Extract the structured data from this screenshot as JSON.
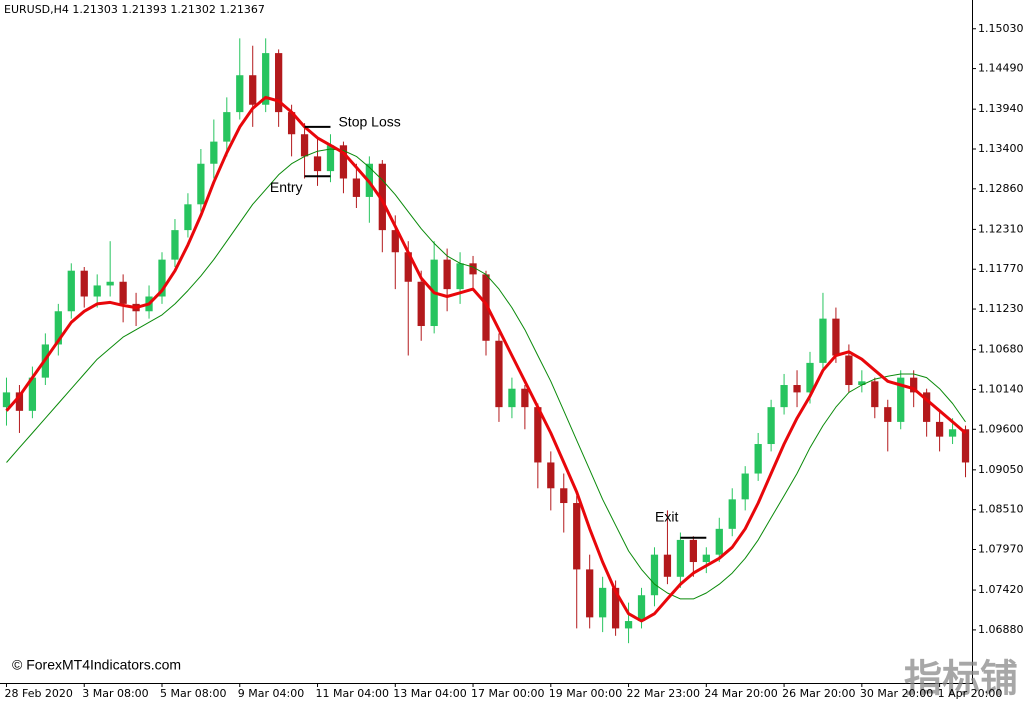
{
  "chart_data": {
    "type": "candlestick",
    "title": "EURUSD,H4  1.21303 1.21393 1.21302 1.21367",
    "copyright": "© ForexMT4Indicators.com",
    "watermark": "指标铺",
    "up_color": "#27c45f",
    "down_color": "#b3191c",
    "ylim": [
      1.0616,
      1.1542
    ],
    "xlim": [
      -0.5,
      74.5
    ],
    "yticks": [
      {
        "value": 1.1503,
        "label": "1.15030"
      },
      {
        "value": 1.1449,
        "label": "1.14490"
      },
      {
        "value": 1.1394,
        "label": "1.13940"
      },
      {
        "value": 1.134,
        "label": "1.13400"
      },
      {
        "value": 1.1286,
        "label": "1.12860"
      },
      {
        "value": 1.1231,
        "label": "1.12310"
      },
      {
        "value": 1.1177,
        "label": "1.11770"
      },
      {
        "value": 1.1123,
        "label": "1.11230"
      },
      {
        "value": 1.1068,
        "label": "1.10680"
      },
      {
        "value": 1.1014,
        "label": "1.10140"
      },
      {
        "value": 1.096,
        "label": "1.09600"
      },
      {
        "value": 1.0905,
        "label": "1.09050"
      },
      {
        "value": 1.0851,
        "label": "1.08510"
      },
      {
        "value": 1.0797,
        "label": "1.07970"
      },
      {
        "value": 1.0742,
        "label": "1.07420"
      },
      {
        "value": 1.0688,
        "label": "1.06880"
      }
    ],
    "xticks": [
      {
        "value": 0,
        "label": "28 Feb 2020"
      },
      {
        "value": 6,
        "label": "3 Mar 08:00"
      },
      {
        "value": 12,
        "label": "5 Mar 08:00"
      },
      {
        "value": 18,
        "label": "9 Mar 04:00"
      },
      {
        "value": 24,
        "label": "11 Mar 04:00"
      },
      {
        "value": 30,
        "label": "13 Mar 04:00"
      },
      {
        "value": 36,
        "label": "17 Mar 00:00"
      },
      {
        "value": 42,
        "label": "19 Mar 00:00"
      },
      {
        "value": 48,
        "label": "22 Mar 23:00"
      },
      {
        "value": 54,
        "label": "24 Mar 20:00"
      },
      {
        "value": 60,
        "label": "26 Mar 20:00"
      },
      {
        "value": 66,
        "label": "30 Mar 20:00"
      },
      {
        "value": 72,
        "label": "1 Apr 20:00"
      }
    ],
    "candles": [
      [
        1.099,
        1.103,
        1.0965,
        1.101
      ],
      [
        1.101,
        1.102,
        1.0955,
        1.0985
      ],
      [
        1.0985,
        1.1045,
        1.0975,
        1.103
      ],
      [
        1.103,
        1.109,
        1.102,
        1.1075
      ],
      [
        1.1075,
        1.113,
        1.106,
        1.112
      ],
      [
        1.112,
        1.1185,
        1.111,
        1.1175
      ],
      [
        1.1175,
        1.118,
        1.1125,
        1.114
      ],
      [
        1.114,
        1.117,
        1.1125,
        1.1155
      ],
      [
        1.1155,
        1.1215,
        1.114,
        1.116
      ],
      [
        1.116,
        1.117,
        1.1105,
        1.113
      ],
      [
        1.113,
        1.1145,
        1.11,
        1.112
      ],
      [
        1.112,
        1.1155,
        1.111,
        1.114
      ],
      [
        1.114,
        1.12,
        1.113,
        1.119
      ],
      [
        1.119,
        1.1245,
        1.118,
        1.123
      ],
      [
        1.123,
        1.128,
        1.122,
        1.1265
      ],
      [
        1.1265,
        1.134,
        1.1255,
        1.132
      ],
      [
        1.132,
        1.138,
        1.13,
        1.135
      ],
      [
        1.135,
        1.141,
        1.133,
        1.139
      ],
      [
        1.139,
        1.149,
        1.138,
        1.144
      ],
      [
        1.144,
        1.148,
        1.137,
        1.14
      ],
      [
        1.14,
        1.149,
        1.139,
        1.147
      ],
      [
        1.147,
        1.1475,
        1.137,
        1.139
      ],
      [
        1.139,
        1.14,
        1.133,
        1.136
      ],
      [
        1.136,
        1.1375,
        1.13,
        1.133
      ],
      [
        1.133,
        1.1355,
        1.129,
        1.131
      ],
      [
        1.131,
        1.136,
        1.1295,
        1.1345
      ],
      [
        1.1345,
        1.135,
        1.128,
        1.13
      ],
      [
        1.13,
        1.132,
        1.126,
        1.1275
      ],
      [
        1.1275,
        1.133,
        1.124,
        1.132
      ],
      [
        1.132,
        1.1325,
        1.12,
        1.123
      ],
      [
        1.123,
        1.125,
        1.115,
        1.12
      ],
      [
        1.12,
        1.1215,
        1.106,
        1.116
      ],
      [
        1.116,
        1.1175,
        1.108,
        1.11
      ],
      [
        1.11,
        1.1215,
        1.109,
        1.119
      ],
      [
        1.119,
        1.1205,
        1.112,
        1.115
      ],
      [
        1.115,
        1.12,
        1.113,
        1.1185
      ],
      [
        1.1185,
        1.1195,
        1.115,
        1.117
      ],
      [
        1.117,
        1.1175,
        1.106,
        1.108
      ],
      [
        1.108,
        1.109,
        1.097,
        1.099
      ],
      [
        1.099,
        1.103,
        1.0975,
        1.1015
      ],
      [
        1.1015,
        1.102,
        1.096,
        1.099
      ],
      [
        1.099,
        1.0995,
        1.088,
        1.0915
      ],
      [
        1.0915,
        1.093,
        1.085,
        1.088
      ],
      [
        1.088,
        1.09,
        1.082,
        1.086
      ],
      [
        1.086,
        1.087,
        1.069,
        1.077
      ],
      [
        1.077,
        1.079,
        1.069,
        1.0705
      ],
      [
        1.0705,
        1.076,
        1.0685,
        1.0745
      ],
      [
        1.0745,
        1.0755,
        1.068,
        1.069
      ],
      [
        1.069,
        1.0725,
        1.067,
        1.07
      ],
      [
        1.07,
        1.0745,
        1.069,
        1.0735
      ],
      [
        1.0735,
        1.08,
        1.072,
        1.079
      ],
      [
        1.079,
        1.085,
        1.075,
        1.076
      ],
      [
        1.076,
        1.082,
        1.0745,
        1.081
      ],
      [
        1.081,
        1.0815,
        1.076,
        1.078
      ],
      [
        1.078,
        1.08,
        1.0765,
        1.079
      ],
      [
        1.079,
        1.084,
        1.078,
        1.0825
      ],
      [
        1.0825,
        1.088,
        1.0815,
        1.0865
      ],
      [
        1.0865,
        1.091,
        1.085,
        1.09
      ],
      [
        1.09,
        1.0955,
        1.089,
        1.094
      ],
      [
        1.094,
        1.1,
        1.093,
        1.099
      ],
      [
        1.099,
        1.1035,
        1.098,
        1.102
      ],
      [
        1.102,
        1.104,
        1.099,
        1.101
      ],
      [
        1.101,
        1.1065,
        1.0995,
        1.105
      ],
      [
        1.105,
        1.1145,
        1.104,
        1.111
      ],
      [
        1.111,
        1.1125,
        1.105,
        1.106
      ],
      [
        1.106,
        1.1075,
        1.101,
        1.102
      ],
      [
        1.102,
        1.104,
        1.101,
        1.1025
      ],
      [
        1.1025,
        1.103,
        1.0975,
        1.099
      ],
      [
        1.099,
        1.1,
        1.093,
        1.097
      ],
      [
        1.097,
        1.104,
        1.096,
        1.103
      ],
      [
        1.103,
        1.104,
        1.099,
        1.101
      ],
      [
        1.101,
        1.1015,
        1.095,
        1.097
      ],
      [
        1.097,
        1.0985,
        1.093,
        1.095
      ],
      [
        1.095,
        1.0975,
        1.094,
        1.096
      ],
      [
        1.096,
        1.0965,
        1.0895,
        1.0915
      ]
    ],
    "lines": [
      {
        "color": "#0a8a0a",
        "width": 1,
        "values": [
          1.0915,
          1.0935,
          1.0955,
          1.0975,
          1.0995,
          1.1015,
          1.1035,
          1.1055,
          1.107,
          1.1085,
          1.1095,
          1.1105,
          1.1115,
          1.113,
          1.1148,
          1.1168,
          1.119,
          1.1215,
          1.124,
          1.1265,
          1.1285,
          1.1305,
          1.132,
          1.133,
          1.1337,
          1.134,
          1.1338,
          1.133,
          1.1315,
          1.1298,
          1.1278,
          1.1255,
          1.1232,
          1.1212,
          1.1195,
          1.1185,
          1.118,
          1.117,
          1.115,
          1.1125,
          1.1095,
          1.106,
          1.1025,
          1.0985,
          1.0945,
          1.0905,
          1.0865,
          1.083,
          1.0795,
          1.077,
          1.075,
          1.0738,
          1.073,
          1.073,
          1.0738,
          1.075,
          1.0765,
          1.0785,
          1.081,
          1.084,
          1.087,
          1.09,
          1.0935,
          1.0965,
          1.099,
          1.101,
          1.102,
          1.1028,
          1.1032,
          1.1035,
          1.1035,
          1.103,
          1.1015,
          1.0995,
          1.097
        ]
      },
      {
        "color": "#e8070b",
        "width": 3,
        "values": [
          1.0985,
          1.1005,
          1.103,
          1.1055,
          1.108,
          1.1105,
          1.112,
          1.113,
          1.1132,
          1.1128,
          1.1125,
          1.113,
          1.1148,
          1.1175,
          1.121,
          1.125,
          1.1295,
          1.1335,
          1.137,
          1.1395,
          1.141,
          1.1405,
          1.139,
          1.137,
          1.1355,
          1.1345,
          1.1335,
          1.1315,
          1.1295,
          1.127,
          1.1235,
          1.12,
          1.1165,
          1.1145,
          1.114,
          1.1145,
          1.115,
          1.113,
          1.1095,
          1.106,
          1.1025,
          1.099,
          1.0955,
          1.0915,
          1.0875,
          1.0825,
          1.078,
          1.074,
          1.071,
          1.07,
          1.071,
          1.073,
          1.075,
          1.0765,
          1.0775,
          1.0785,
          1.08,
          1.0825,
          1.086,
          1.09,
          1.094,
          1.0975,
          1.1005,
          1.104,
          1.106,
          1.1065,
          1.1055,
          1.104,
          1.1025,
          1.102,
          1.1015,
          1.1,
          1.0985,
          1.097,
          1.0955
        ]
      }
    ],
    "annotations": [
      {
        "text": "Stop Loss",
        "value": 1.137,
        "at": 24
      },
      {
        "text": "Entry",
        "value": 1.1303,
        "at": 24
      },
      {
        "text": "Exit",
        "value": 1.0813,
        "at": 53
      }
    ]
  }
}
